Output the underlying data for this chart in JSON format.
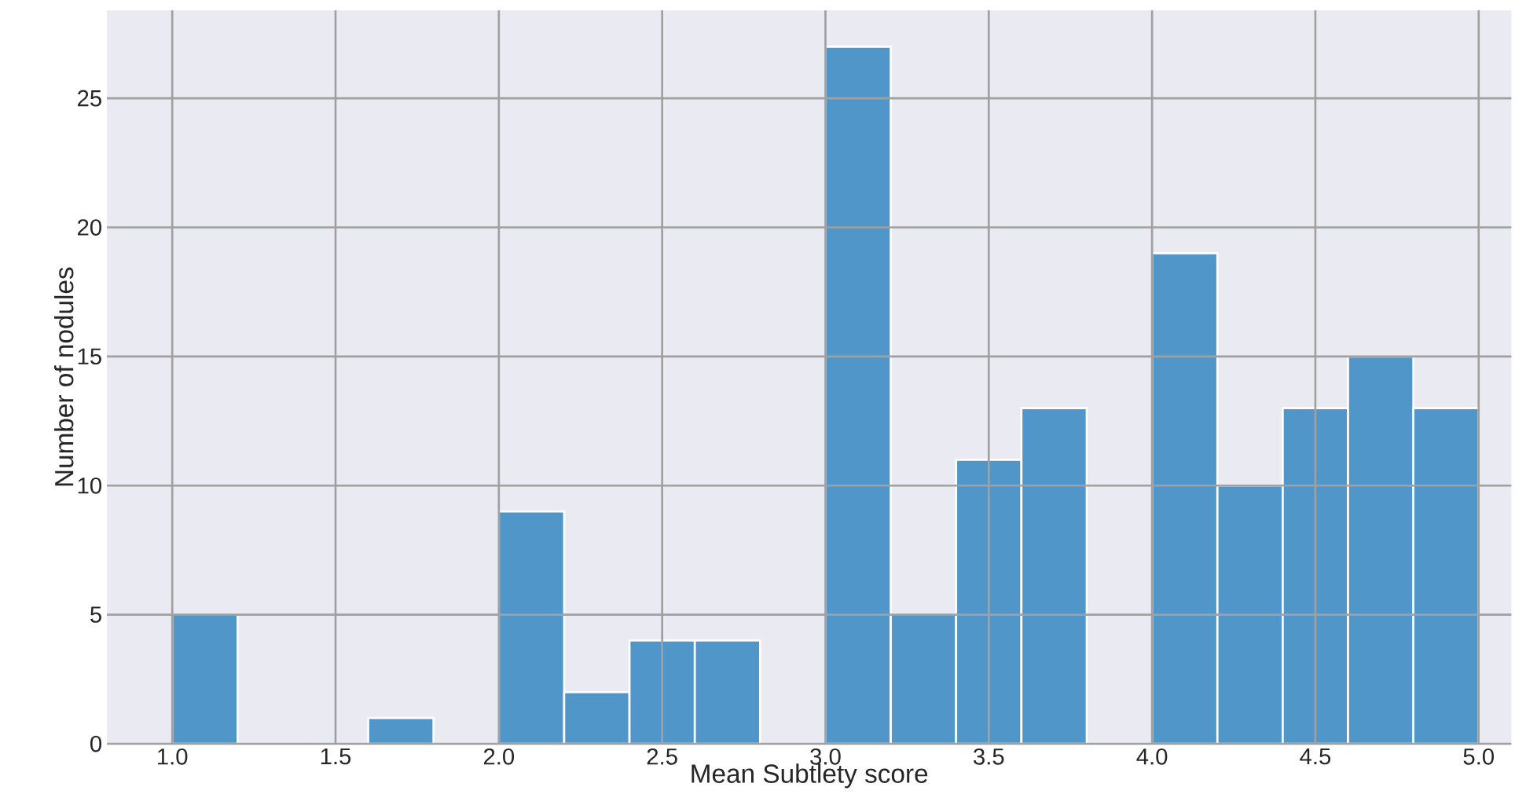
{
  "chart_data": {
    "type": "histogram",
    "xlabel": "Mean Subtlety score",
    "ylabel": "Number of nodules",
    "bins": [
      1.0,
      1.2,
      1.4,
      1.6,
      1.8,
      2.0,
      2.2,
      2.4,
      2.6,
      2.8,
      3.0,
      3.2,
      3.4,
      3.6,
      3.8,
      4.0,
      4.2,
      4.4,
      4.6,
      4.8,
      5.0
    ],
    "values": [
      5,
      0,
      0,
      1,
      0,
      9,
      2,
      4,
      4,
      0,
      27,
      5,
      11,
      13,
      0,
      19,
      10,
      13,
      15,
      13
    ],
    "color": "#5096c8",
    "xlim": [
      0.8,
      5.1
    ],
    "ylim": [
      0,
      28.4
    ],
    "xticks": [
      {
        "value": 1.0,
        "label": "1.0"
      },
      {
        "value": 1.5,
        "label": "1.5"
      },
      {
        "value": 2.0,
        "label": "2.0"
      },
      {
        "value": 2.5,
        "label": "2.5"
      },
      {
        "value": 3.0,
        "label": "3.0"
      },
      {
        "value": 3.5,
        "label": "3.5"
      },
      {
        "value": 4.0,
        "label": "4.0"
      },
      {
        "value": 4.5,
        "label": "4.5"
      },
      {
        "value": 5.0,
        "label": "5.0"
      }
    ],
    "yticks": [
      0,
      5,
      10,
      15,
      20,
      25
    ],
    "grid": true
  }
}
